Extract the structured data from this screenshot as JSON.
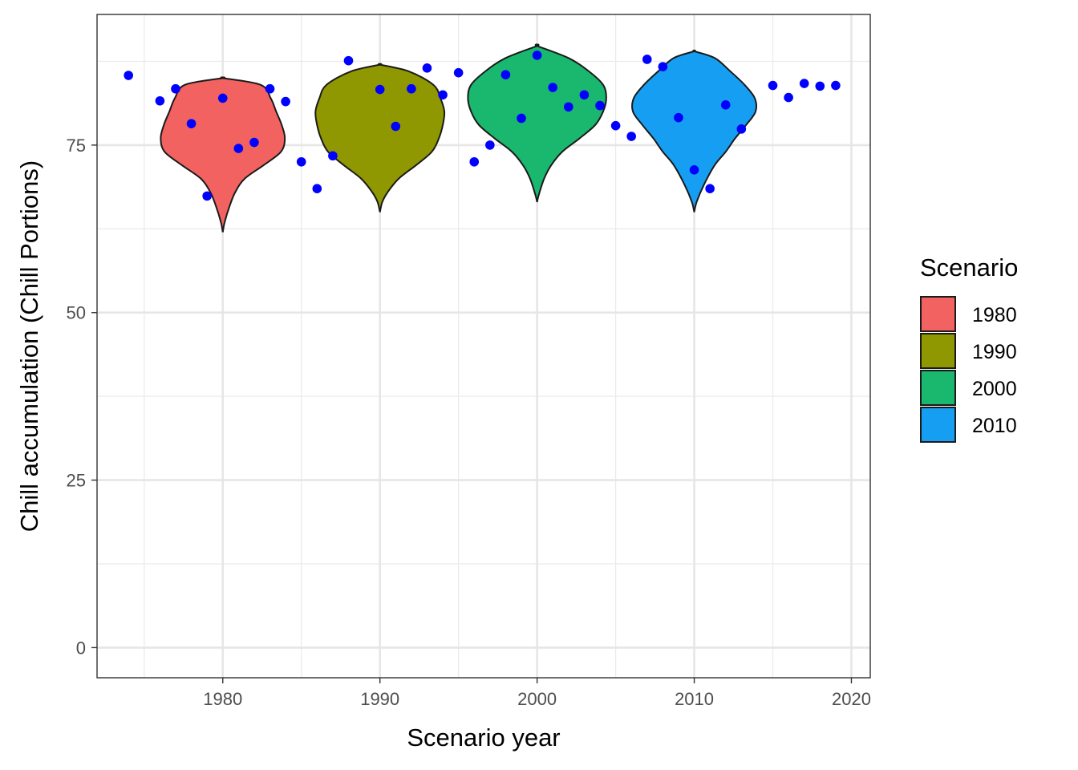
{
  "chart_data": {
    "type": "violin",
    "title": "",
    "xlabel": "Scenario year",
    "ylabel": "Chill accumulation (Chill Portions)",
    "xlim": [
      1972,
      2021.2
    ],
    "ylim": [
      -4.5,
      94.5
    ],
    "x_ticks": [
      1980,
      1990,
      2000,
      2010,
      2020
    ],
    "x_tick_labels": [
      "1980",
      "1990",
      "2000",
      "2010",
      "2020"
    ],
    "y_ticks": [
      0,
      25,
      50,
      75
    ],
    "y_tick_labels": [
      "0",
      "25",
      "50",
      "75"
    ],
    "grid": true,
    "legend": {
      "title": "Scenario",
      "position": "right",
      "entries": [
        {
          "label": "1980",
          "color": "#F8766D"
        },
        {
          "label": "1990",
          "color": "#7CAE00"
        },
        {
          "label": "2000",
          "color": "#00BFC4"
        },
        {
          "label": "2010",
          "color": "#C77CFF"
        }
      ]
    },
    "violins": [
      {
        "scenario": "1980",
        "x": 1980,
        "color": "#F26260",
        "profile": [
          [
            62.0,
            0.0
          ],
          [
            63.5,
            0.12
          ],
          [
            66.0,
            0.45
          ],
          [
            68.0,
            0.8
          ],
          [
            70.0,
            1.4
          ],
          [
            72.0,
            2.6
          ],
          [
            74.0,
            3.7
          ],
          [
            76.0,
            3.95
          ],
          [
            78.0,
            3.75
          ],
          [
            80.0,
            3.4
          ],
          [
            82.0,
            3.05
          ],
          [
            84.0,
            2.4
          ],
          [
            85.0,
            0.0
          ]
        ]
      },
      {
        "scenario": "1990",
        "x": 1990,
        "color": "#8F9800",
        "profile": [
          [
            65.0,
            0.0
          ],
          [
            66.5,
            0.15
          ],
          [
            68.0,
            0.5
          ],
          [
            70.0,
            1.2
          ],
          [
            72.0,
            2.3
          ],
          [
            74.0,
            3.3
          ],
          [
            76.0,
            3.75
          ],
          [
            78.0,
            4.0
          ],
          [
            80.0,
            4.1
          ],
          [
            82.0,
            3.85
          ],
          [
            84.0,
            3.4
          ],
          [
            86.0,
            1.85
          ],
          [
            87.0,
            0.0
          ]
        ]
      },
      {
        "scenario": "2000",
        "x": 2000,
        "color": "#1AB76E",
        "profile": [
          [
            66.5,
            0.0
          ],
          [
            67.5,
            0.1
          ],
          [
            70.0,
            0.45
          ],
          [
            72.0,
            0.9
          ],
          [
            74.0,
            1.6
          ],
          [
            76.0,
            2.7
          ],
          [
            78.0,
            3.7
          ],
          [
            80.0,
            4.2
          ],
          [
            82.0,
            4.4
          ],
          [
            84.0,
            4.2
          ],
          [
            86.0,
            3.3
          ],
          [
            88.0,
            2.0
          ],
          [
            89.8,
            0.0
          ]
        ]
      },
      {
        "scenario": "2010",
        "x": 2010,
        "color": "#169FF2",
        "profile": [
          [
            65.0,
            0.0
          ],
          [
            66.5,
            0.15
          ],
          [
            69.0,
            0.6
          ],
          [
            72.0,
            1.3
          ],
          [
            74.0,
            2.0
          ],
          [
            76.0,
            2.6
          ],
          [
            78.0,
            3.3
          ],
          [
            80.0,
            3.9
          ],
          [
            82.0,
            3.85
          ],
          [
            84.0,
            3.2
          ],
          [
            86.0,
            2.3
          ],
          [
            88.0,
            1.3
          ],
          [
            89.0,
            0.0
          ]
        ]
      }
    ],
    "points": {
      "color": "#0000FF",
      "x": [
        1974,
        1976,
        1977,
        1978,
        1979,
        1980,
        1981,
        1982,
        1983,
        1984,
        1985,
        1986,
        1987,
        1988,
        1990,
        1991,
        1992,
        1993,
        1994,
        1995,
        1996,
        1997,
        1998,
        1999,
        2000,
        2001,
        2002,
        2003,
        2004,
        2005,
        2006,
        2007,
        2008,
        2009,
        2010,
        2011,
        2012,
        2013,
        2015,
        2016,
        2017,
        2018,
        2019
      ],
      "y": [
        85.4,
        81.6,
        83.4,
        78.2,
        67.4,
        82.0,
        74.5,
        75.4,
        83.4,
        81.5,
        72.5,
        68.5,
        73.4,
        87.6,
        83.3,
        77.8,
        83.4,
        86.5,
        82.5,
        85.8,
        72.5,
        75.0,
        85.5,
        79.0,
        88.4,
        83.6,
        80.7,
        82.5,
        80.9,
        77.9,
        76.3,
        87.8,
        86.7,
        79.1,
        71.3,
        68.5,
        81.0,
        77.4,
        83.9,
        82.1,
        84.2,
        83.8,
        83.9
      ]
    }
  }
}
